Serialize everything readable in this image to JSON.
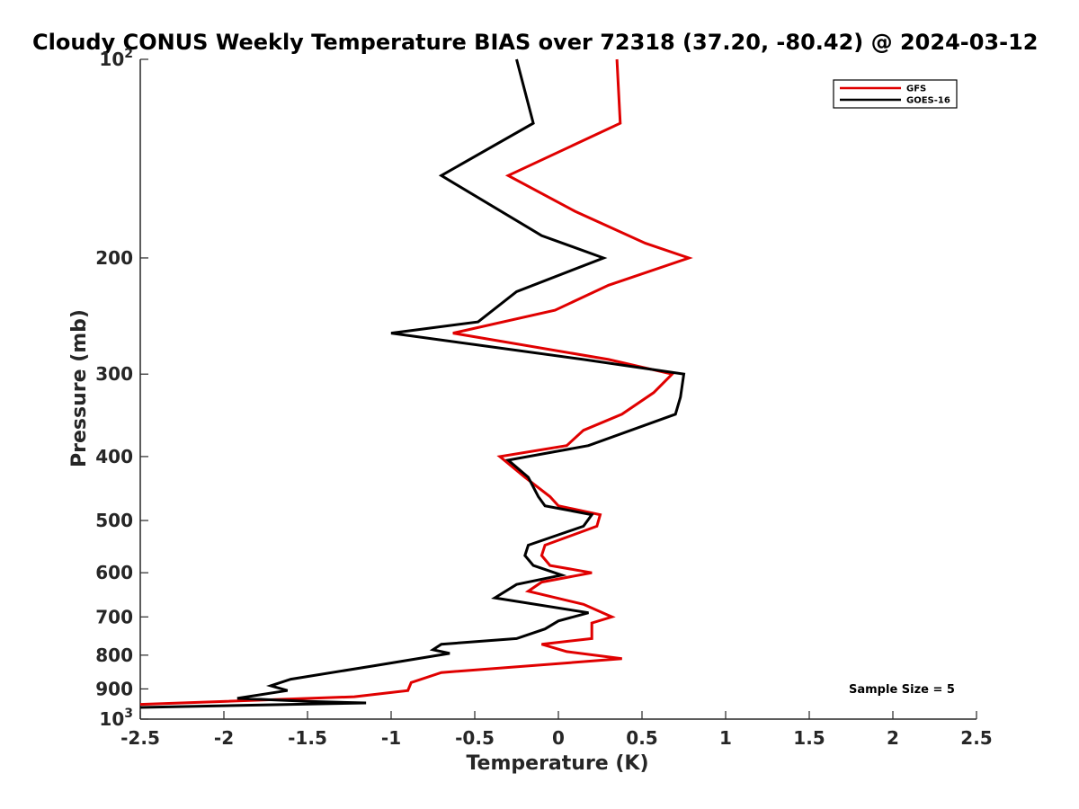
{
  "chart_data": {
    "type": "line",
    "title": "Cloudy CONUS Weekly Temperature BIAS over 72318 (37.20, -80.42) @ 2024-03-12",
    "xlabel": "Temperature (K)",
    "ylabel": "Pressure (mb)",
    "xlim": [
      -2.5,
      2.5
    ],
    "ylim": [
      1000,
      100
    ],
    "y_scale": "log",
    "y_axis_reversed": true,
    "x_ticks": [
      "-2.5",
      "-2",
      "-1.5",
      "-1",
      "-0.5",
      "0",
      "0.5",
      "1",
      "1.5",
      "2",
      "2.5"
    ],
    "x_tick_values": [
      -2.5,
      -2,
      -1.5,
      -1,
      -0.5,
      0,
      0.5,
      1,
      1.5,
      2,
      2.5
    ],
    "y_ticks": [
      {
        "value": 100,
        "base": "10",
        "exp": "2"
      },
      {
        "value": 200,
        "label": "200"
      },
      {
        "value": 300,
        "label": "300"
      },
      {
        "value": 400,
        "label": "400"
      },
      {
        "value": 500,
        "label": "500"
      },
      {
        "value": 600,
        "label": "600"
      },
      {
        "value": 700,
        "label": "700"
      },
      {
        "value": 800,
        "label": "800"
      },
      {
        "value": 900,
        "label": "900"
      },
      {
        "value": 1000,
        "base": "10",
        "exp": "3"
      }
    ],
    "grid": false,
    "legend_position": "top-right",
    "annotation": "Sample Size = 5",
    "series": [
      {
        "name": "GFS",
        "color": "#e00000",
        "points": [
          [
            0.35,
            100
          ],
          [
            0.37,
            125
          ],
          [
            -0.3,
            150
          ],
          [
            0.1,
            170
          ],
          [
            0.52,
            190
          ],
          [
            0.78,
            200
          ],
          [
            0.3,
            220
          ],
          [
            -0.02,
            240
          ],
          [
            -0.63,
            260
          ],
          [
            0.3,
            285
          ],
          [
            0.68,
            300
          ],
          [
            0.57,
            320
          ],
          [
            0.38,
            345
          ],
          [
            0.15,
            365
          ],
          [
            0.05,
            385
          ],
          [
            -0.35,
            400
          ],
          [
            -0.2,
            430
          ],
          [
            -0.05,
            460
          ],
          [
            0.0,
            475
          ],
          [
            0.25,
            490
          ],
          [
            0.23,
            510
          ],
          [
            -0.08,
            545
          ],
          [
            -0.1,
            565
          ],
          [
            -0.05,
            585
          ],
          [
            0.2,
            600
          ],
          [
            -0.1,
            620
          ],
          [
            -0.18,
            640
          ],
          [
            0.15,
            670
          ],
          [
            0.32,
            700
          ],
          [
            0.2,
            715
          ],
          [
            0.2,
            755
          ],
          [
            -0.1,
            770
          ],
          [
            0.05,
            790
          ],
          [
            0.38,
            810
          ],
          [
            -0.7,
            850
          ],
          [
            -0.88,
            880
          ],
          [
            -0.9,
            905
          ],
          [
            -1.22,
            925
          ],
          [
            -2.5,
            950
          ]
        ]
      },
      {
        "name": "GOES-16",
        "color": "#000000",
        "points": [
          [
            -0.25,
            100
          ],
          [
            -0.15,
            125
          ],
          [
            -0.7,
            150
          ],
          [
            -0.1,
            185
          ],
          [
            0.27,
            200
          ],
          [
            -0.25,
            225
          ],
          [
            -0.48,
            250
          ],
          [
            -1.0,
            260
          ],
          [
            0.15,
            285
          ],
          [
            0.75,
            300
          ],
          [
            0.73,
            325
          ],
          [
            0.7,
            345
          ],
          [
            0.18,
            385
          ],
          [
            -0.3,
            405
          ],
          [
            -0.18,
            430
          ],
          [
            -0.12,
            460
          ],
          [
            -0.08,
            475
          ],
          [
            0.2,
            490
          ],
          [
            0.15,
            510
          ],
          [
            -0.18,
            545
          ],
          [
            -0.2,
            565
          ],
          [
            -0.15,
            585
          ],
          [
            0.02,
            605
          ],
          [
            -0.25,
            625
          ],
          [
            -0.38,
            655
          ],
          [
            0.18,
            690
          ],
          [
            0.0,
            710
          ],
          [
            -0.08,
            730
          ],
          [
            -0.25,
            755
          ],
          [
            -0.7,
            770
          ],
          [
            -0.75,
            785
          ],
          [
            -0.65,
            795
          ],
          [
            -1.1,
            830
          ],
          [
            -1.6,
            870
          ],
          [
            -1.72,
            890
          ],
          [
            -1.62,
            905
          ],
          [
            -1.92,
            930
          ],
          [
            -1.5,
            940
          ],
          [
            -1.15,
            945
          ],
          [
            -2.5,
            960
          ]
        ]
      }
    ]
  }
}
